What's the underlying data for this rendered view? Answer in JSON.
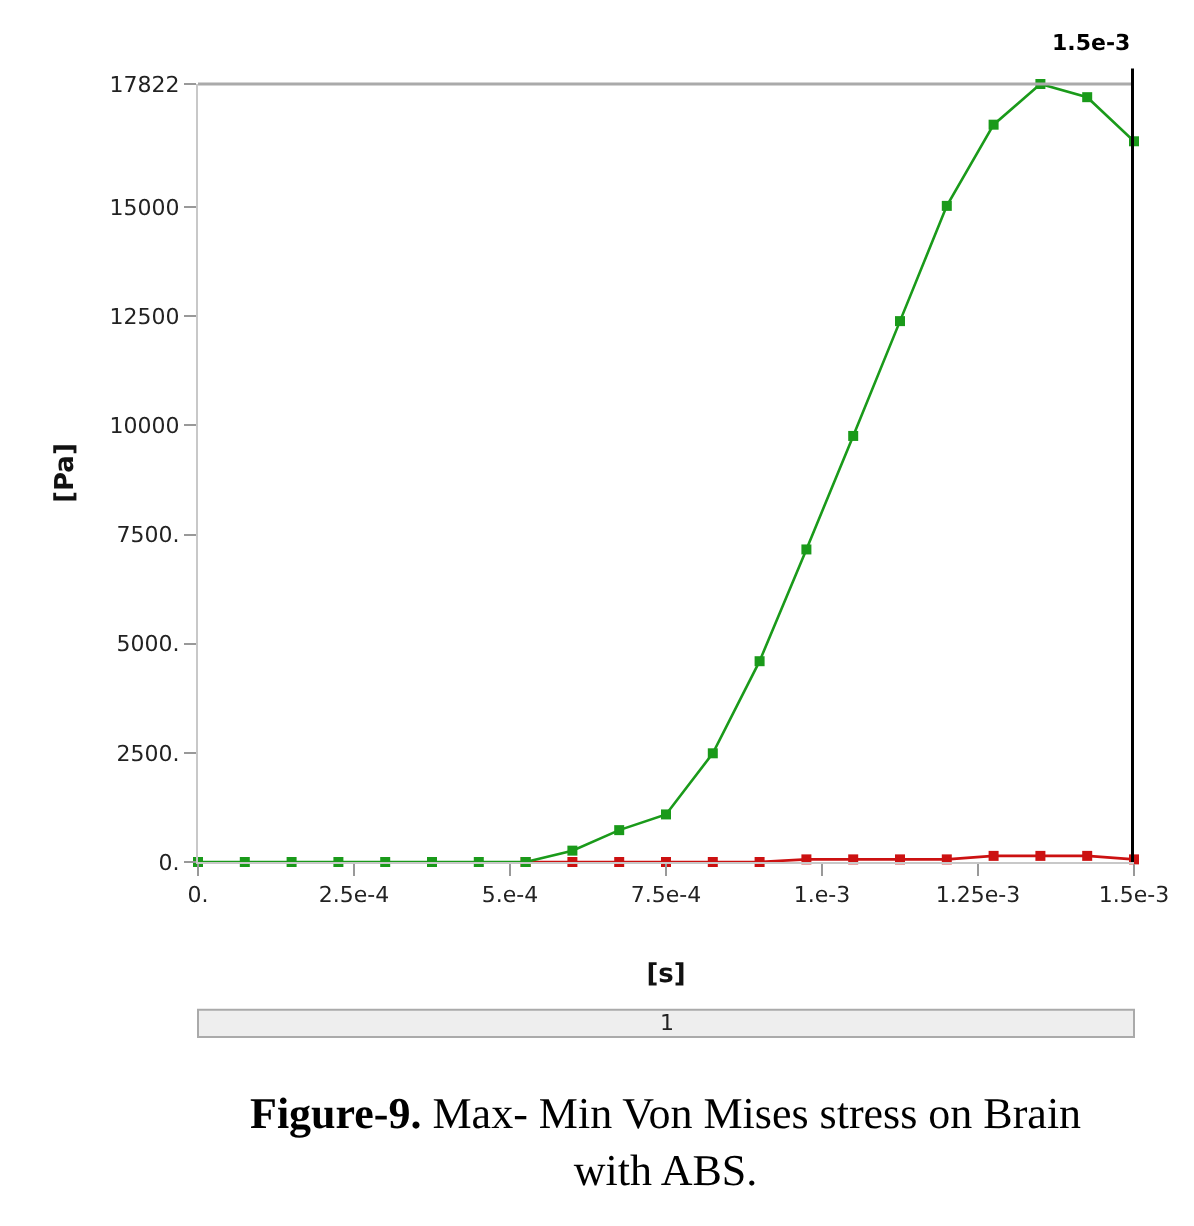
{
  "chart_data": {
    "type": "line",
    "xlabel": "[s]",
    "ylabel": "[Pa]",
    "x": [
      0,
      7.5e-05,
      0.00015,
      0.000225,
      0.0003,
      0.000375,
      0.00045,
      0.000525,
      0.0006,
      0.000675,
      0.00075,
      0.000825,
      0.0009,
      0.000975,
      0.00105,
      0.001125,
      0.0012,
      0.001275,
      0.00135,
      0.001425,
      0.0015
    ],
    "series": [
      {
        "color": "#cc1111",
        "values": [
          null,
          null,
          null,
          null,
          null,
          null,
          null,
          0,
          0,
          0,
          0,
          0,
          0,
          60,
          60,
          60,
          60,
          140,
          140,
          140,
          60
        ]
      },
      {
        "color": "#1a9a1a",
        "values": [
          0,
          0,
          0,
          0,
          0,
          0,
          0,
          0,
          260,
          730,
          1090,
          2490,
          4600,
          7160,
          9760,
          12390,
          15030,
          16890,
          17822,
          17520,
          16510
        ]
      }
    ],
    "xlim": [
      0,
      0.0015
    ],
    "ylim": [
      0,
      17822
    ],
    "xticks": [
      {
        "value": 0,
        "label": "0."
      },
      {
        "value": 0.00025,
        "label": "2.5e-4"
      },
      {
        "value": 0.0005,
        "label": "5.e-4"
      },
      {
        "value": 0.00075,
        "label": "7.5e-4"
      },
      {
        "value": 0.001,
        "label": "1.e-3"
      },
      {
        "value": 0.00125,
        "label": "1.25e-3"
      },
      {
        "value": 0.0015,
        "label": "1.5e-3"
      }
    ],
    "yticks": [
      {
        "value": 0,
        "label": "0."
      },
      {
        "value": 2500,
        "label": "2500."
      },
      {
        "value": 5000,
        "label": "5000."
      },
      {
        "value": 7500,
        "label": "7500."
      },
      10000,
      12500,
      15000,
      17822
    ],
    "ref_lines": [
      {
        "axis": "x",
        "value": 0.0015,
        "label": "1.5e-3",
        "color": "#000000"
      }
    ],
    "annotations": [
      "1",
      "Figure-9. Max- Min Von Mises stress on Brain with ABS."
    ],
    "marker": "square"
  }
}
